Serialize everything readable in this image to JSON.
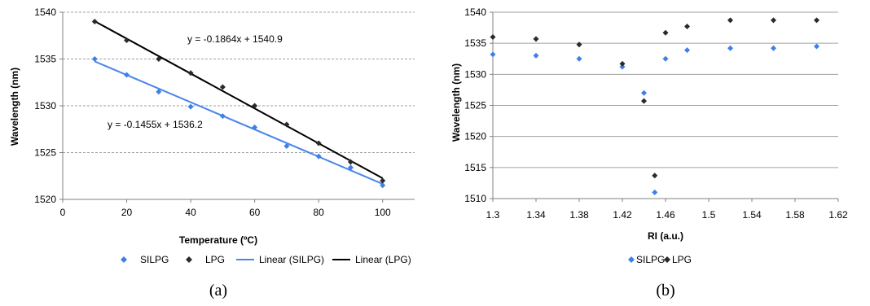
{
  "colors": {
    "silpg": "#3F7FE8",
    "lpg": "#2A2A2A",
    "fit_silpg": "#4A86E8",
    "fit_lpg": "#000000",
    "grid": "#A0A0A0",
    "axis": "#808080",
    "text": "#000000"
  },
  "chart_data": [
    {
      "type": "scatter",
      "panel_label": "(a)",
      "xlabel": "Temperature (ºC)",
      "ylabel": "Wavelength (nm)",
      "xlim": [
        0,
        110
      ],
      "ylim": [
        1520,
        1540
      ],
      "xticks": [
        0,
        20,
        40,
        60,
        80,
        100
      ],
      "yticks": [
        1520,
        1525,
        1530,
        1535,
        1540
      ],
      "grid": "horizontal dashed",
      "legend_position": "bottom",
      "series": [
        {
          "name": "SILPG",
          "marker": "diamond",
          "color": "#3F7FE8",
          "x": [
            10,
            20,
            30,
            40,
            50,
            60,
            70,
            80,
            90,
            100
          ],
          "y": [
            1535.0,
            1533.3,
            1531.5,
            1529.9,
            1528.9,
            1527.7,
            1525.7,
            1524.6,
            1523.4,
            1521.5
          ]
        },
        {
          "name": "LPG",
          "marker": "diamond",
          "color": "#2A2A2A",
          "x": [
            10,
            20,
            30,
            40,
            50,
            60,
            70,
            80,
            90,
            100
          ],
          "y": [
            1539.0,
            1537.0,
            1535.0,
            1533.5,
            1532.0,
            1530.0,
            1528.0,
            1526.0,
            1524.0,
            1522.0
          ]
        }
      ],
      "trendlines": [
        {
          "name": "Linear (SILPG)",
          "slope": -0.1455,
          "intercept": 1536.2,
          "x_range": [
            10,
            100
          ],
          "color": "#4A86E8",
          "equation": "y = -0.1455x + 1536.2"
        },
        {
          "name": "Linear (LPG)",
          "slope": -0.1864,
          "intercept": 1540.9,
          "x_range": [
            10,
            100
          ],
          "color": "#000000",
          "equation": "y = -0.1864x + 1540.9"
        }
      ],
      "legend": [
        "SILPG",
        "LPG",
        "Linear (SILPG)",
        "Linear (LPG)"
      ]
    },
    {
      "type": "scatter",
      "panel_label": "(b)",
      "xlabel": "RI (a.u.)",
      "ylabel": "Wavelength (nm)",
      "xlim": [
        1.3,
        1.62
      ],
      "ylim": [
        1510,
        1540
      ],
      "xticks": [
        "1.3",
        "1.34",
        "1.38",
        "1.42",
        "1.46",
        "1.5",
        "1.54",
        "1.58",
        "1.62"
      ],
      "yticks": [
        1510,
        1515,
        1520,
        1525,
        1530,
        1535,
        1540
      ],
      "grid": "horizontal",
      "legend_position": "bottom",
      "series": [
        {
          "name": "SILPG",
          "marker": "diamond",
          "color": "#3F7FE8",
          "x": [
            1.3,
            1.34,
            1.38,
            1.42,
            1.44,
            1.45,
            1.46,
            1.48,
            1.52,
            1.56,
            1.6
          ],
          "y": [
            1533.2,
            1533.0,
            1532.5,
            1531.2,
            1527.0,
            1511.0,
            1532.5,
            1533.9,
            1534.2,
            1534.2,
            1534.5
          ]
        },
        {
          "name": "LPG",
          "marker": "diamond",
          "color": "#2A2A2A",
          "x": [
            1.3,
            1.34,
            1.38,
            1.42,
            1.44,
            1.45,
            1.46,
            1.48,
            1.52,
            1.56,
            1.6
          ],
          "y": [
            1536.0,
            1535.7,
            1534.8,
            1531.7,
            1525.7,
            1513.7,
            1536.7,
            1537.7,
            1538.7,
            1538.7,
            1538.7
          ]
        }
      ],
      "legend": [
        "SILPG",
        "LPG"
      ]
    }
  ]
}
